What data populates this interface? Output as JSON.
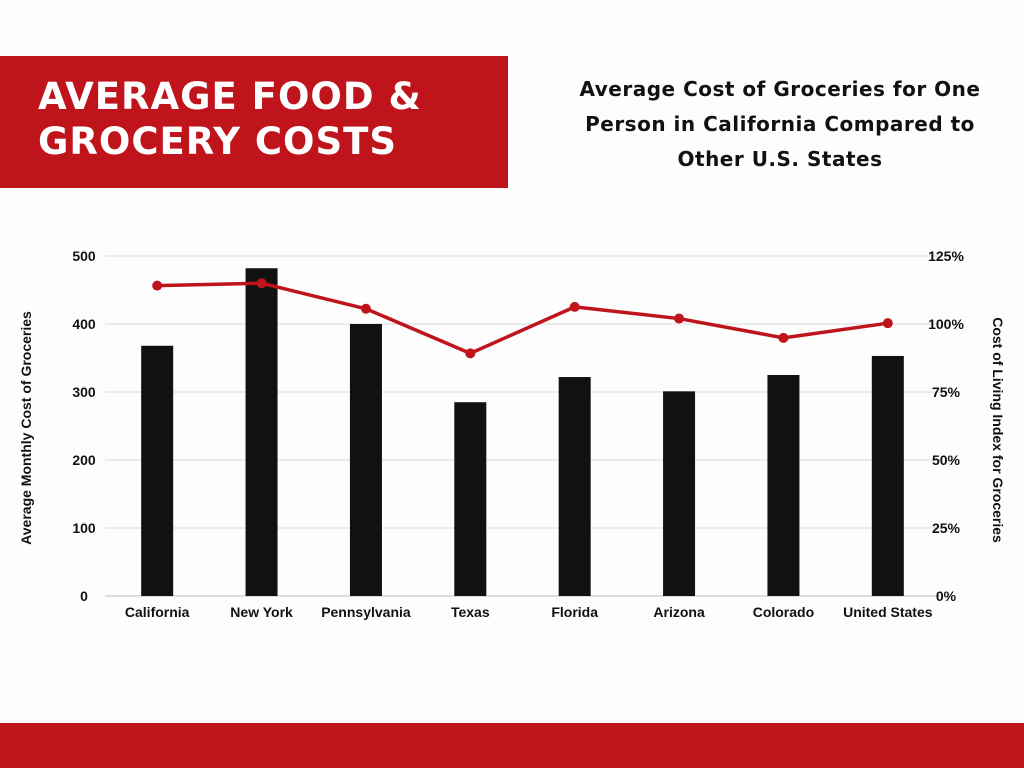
{
  "header": {
    "banner_title": "AVERAGE FOOD &\nGROCERY COSTS",
    "subtitle": "Average Cost of Groceries for One\nPerson in California Compared to\nOther U.S. States"
  },
  "colors": {
    "accent": "#c0141c",
    "bar": "#111111",
    "line": "#c0141c",
    "grid": "#d9d9d9"
  },
  "chart_data": {
    "type": "bar",
    "categories": [
      "California",
      "New York",
      "Pennsylvania",
      "Texas",
      "Florida",
      "Arizona",
      "Colorado",
      "United States"
    ],
    "series": [
      {
        "type": "bar",
        "axis": "left",
        "values": [
          368,
          482,
          400,
          285,
          322,
          301,
          325,
          353
        ]
      },
      {
        "type": "line",
        "axis": "right",
        "values": [
          114.1,
          115.0,
          105.6,
          89.2,
          106.3,
          102.0,
          94.9,
          100.3
        ]
      }
    ],
    "ylabel": "Average Monthly Cost of Groceries",
    "y2label": "Cost of Living Index for Groceries",
    "ylim": [
      0,
      500
    ],
    "y2lim": [
      0,
      125
    ],
    "yticks": [
      "0",
      "100",
      "200",
      "300",
      "400",
      "500"
    ],
    "y2ticks": [
      "0%",
      "25%",
      "50%",
      "75%",
      "100%",
      "125%"
    ],
    "grid": true
  }
}
